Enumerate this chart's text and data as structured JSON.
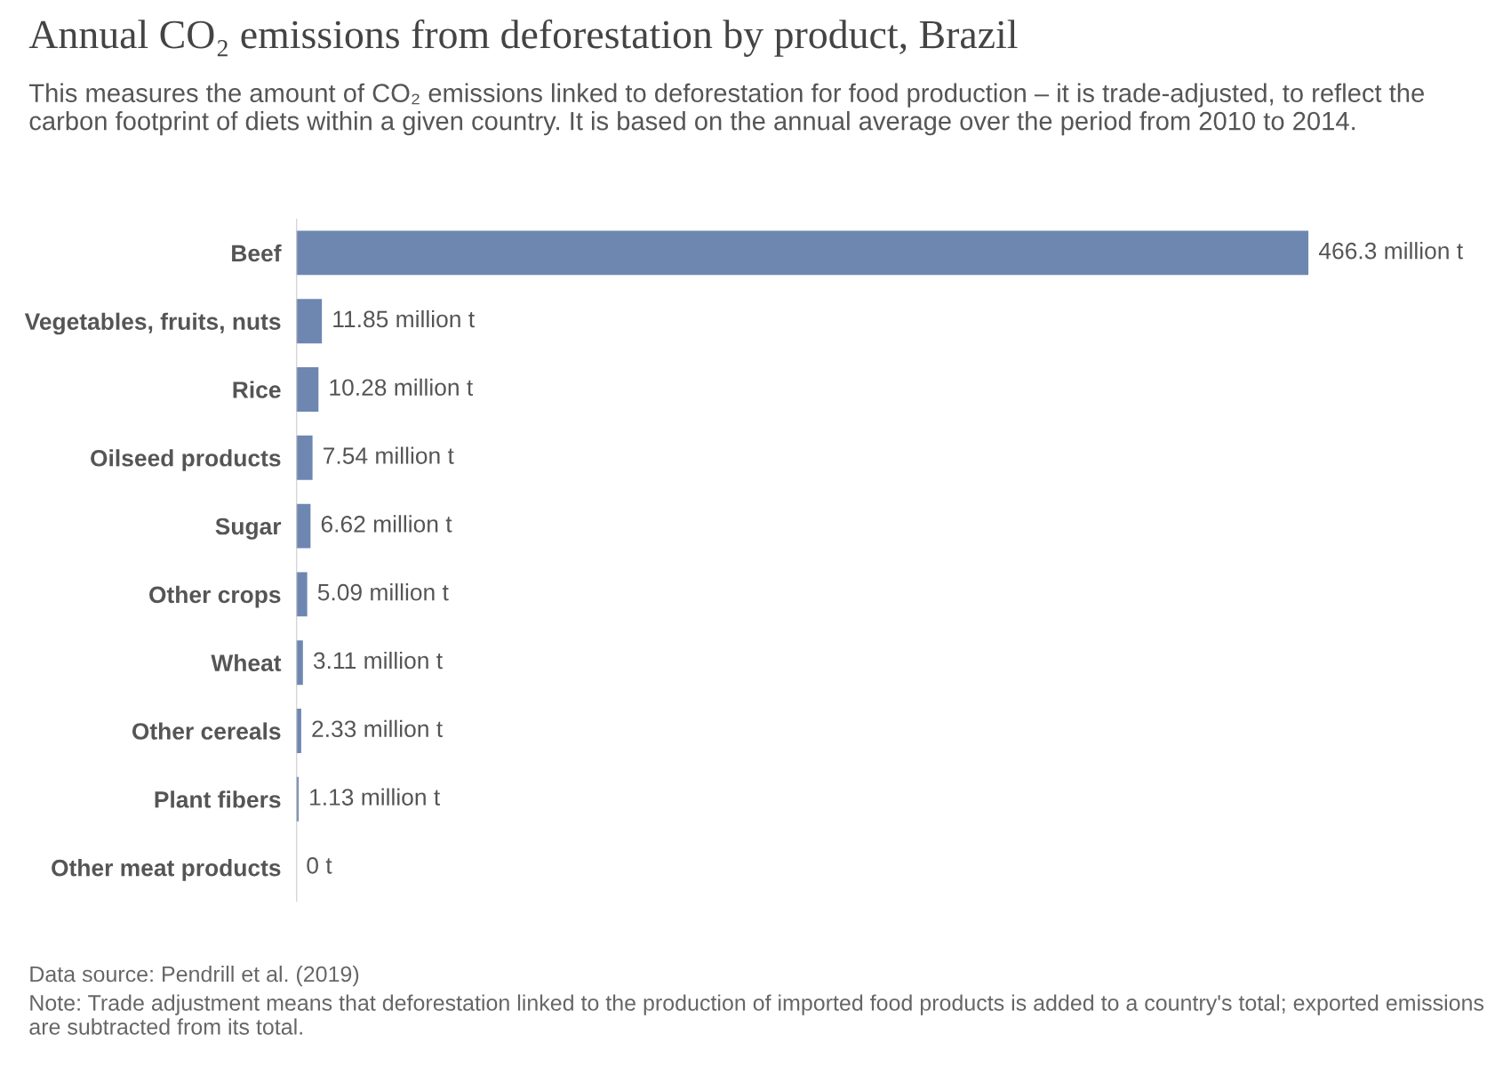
{
  "chart_data": {
    "type": "bar",
    "orientation": "horizontal",
    "title": "Annual CO₂ emissions from deforestation by product, Brazil",
    "subtitle": "This measures the amount of CO₂ emissions linked to deforestation for food production – it is trade-adjusted, to reflect the carbon footprint of diets within a given country. It is based on the annual average over the period from 2010 to 2014.",
    "categories": [
      "Beef",
      "Vegetables, fruits, nuts",
      "Rice",
      "Oilseed products",
      "Sugar",
      "Other crops",
      "Wheat",
      "Other cereals",
      "Plant fibers",
      "Other meat products"
    ],
    "values": [
      466.3,
      11.85,
      10.28,
      7.54,
      6.62,
      5.09,
      3.11,
      2.33,
      1.13,
      0
    ],
    "value_labels": [
      "466.3 million t",
      "11.85 million t",
      "10.28 million t",
      "7.54 million t",
      "6.62 million t",
      "5.09 million t",
      "3.11 million t",
      "2.33 million t",
      "1.13 million t",
      "0 t"
    ],
    "color": "#6d87b1",
    "annotations": [
      "Data source: Pendrill et al. (2019)",
      "Note: Trade adjustment means that deforestation linked to the production of imported food products is added to a country's total; exported emissions are subtracted from its total."
    ]
  }
}
